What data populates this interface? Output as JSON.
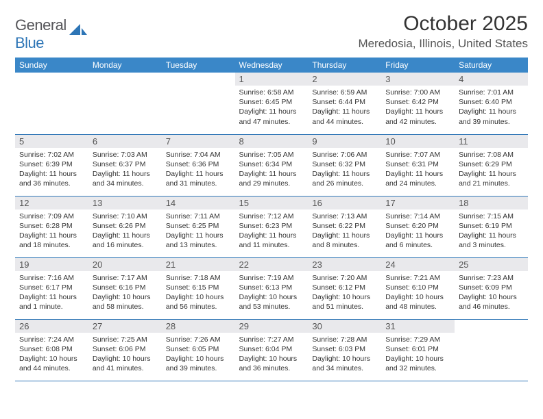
{
  "brand": {
    "part1": "General",
    "part2": "Blue"
  },
  "title": "October 2025",
  "location": "Meredosia, Illinois, United States",
  "colors": {
    "header_bg": "#3a87c8",
    "header_text": "#ffffff",
    "daynum_bg": "#e9e9ec",
    "rule": "#2d75b6",
    "brand_gray": "#555559",
    "brand_blue": "#2d75b6",
    "body_text": "#333333"
  },
  "weekdays": [
    "Sunday",
    "Monday",
    "Tuesday",
    "Wednesday",
    "Thursday",
    "Friday",
    "Saturday"
  ],
  "weeks": [
    [
      {
        "n": "",
        "sr": "",
        "ss": "",
        "dl": ""
      },
      {
        "n": "",
        "sr": "",
        "ss": "",
        "dl": ""
      },
      {
        "n": "",
        "sr": "",
        "ss": "",
        "dl": ""
      },
      {
        "n": "1",
        "sr": "Sunrise: 6:58 AM",
        "ss": "Sunset: 6:45 PM",
        "dl": "Daylight: 11 hours and 47 minutes."
      },
      {
        "n": "2",
        "sr": "Sunrise: 6:59 AM",
        "ss": "Sunset: 6:44 PM",
        "dl": "Daylight: 11 hours and 44 minutes."
      },
      {
        "n": "3",
        "sr": "Sunrise: 7:00 AM",
        "ss": "Sunset: 6:42 PM",
        "dl": "Daylight: 11 hours and 42 minutes."
      },
      {
        "n": "4",
        "sr": "Sunrise: 7:01 AM",
        "ss": "Sunset: 6:40 PM",
        "dl": "Daylight: 11 hours and 39 minutes."
      }
    ],
    [
      {
        "n": "5",
        "sr": "Sunrise: 7:02 AM",
        "ss": "Sunset: 6:39 PM",
        "dl": "Daylight: 11 hours and 36 minutes."
      },
      {
        "n": "6",
        "sr": "Sunrise: 7:03 AM",
        "ss": "Sunset: 6:37 PM",
        "dl": "Daylight: 11 hours and 34 minutes."
      },
      {
        "n": "7",
        "sr": "Sunrise: 7:04 AM",
        "ss": "Sunset: 6:36 PM",
        "dl": "Daylight: 11 hours and 31 minutes."
      },
      {
        "n": "8",
        "sr": "Sunrise: 7:05 AM",
        "ss": "Sunset: 6:34 PM",
        "dl": "Daylight: 11 hours and 29 minutes."
      },
      {
        "n": "9",
        "sr": "Sunrise: 7:06 AM",
        "ss": "Sunset: 6:32 PM",
        "dl": "Daylight: 11 hours and 26 minutes."
      },
      {
        "n": "10",
        "sr": "Sunrise: 7:07 AM",
        "ss": "Sunset: 6:31 PM",
        "dl": "Daylight: 11 hours and 24 minutes."
      },
      {
        "n": "11",
        "sr": "Sunrise: 7:08 AM",
        "ss": "Sunset: 6:29 PM",
        "dl": "Daylight: 11 hours and 21 minutes."
      }
    ],
    [
      {
        "n": "12",
        "sr": "Sunrise: 7:09 AM",
        "ss": "Sunset: 6:28 PM",
        "dl": "Daylight: 11 hours and 18 minutes."
      },
      {
        "n": "13",
        "sr": "Sunrise: 7:10 AM",
        "ss": "Sunset: 6:26 PM",
        "dl": "Daylight: 11 hours and 16 minutes."
      },
      {
        "n": "14",
        "sr": "Sunrise: 7:11 AM",
        "ss": "Sunset: 6:25 PM",
        "dl": "Daylight: 11 hours and 13 minutes."
      },
      {
        "n": "15",
        "sr": "Sunrise: 7:12 AM",
        "ss": "Sunset: 6:23 PM",
        "dl": "Daylight: 11 hours and 11 minutes."
      },
      {
        "n": "16",
        "sr": "Sunrise: 7:13 AM",
        "ss": "Sunset: 6:22 PM",
        "dl": "Daylight: 11 hours and 8 minutes."
      },
      {
        "n": "17",
        "sr": "Sunrise: 7:14 AM",
        "ss": "Sunset: 6:20 PM",
        "dl": "Daylight: 11 hours and 6 minutes."
      },
      {
        "n": "18",
        "sr": "Sunrise: 7:15 AM",
        "ss": "Sunset: 6:19 PM",
        "dl": "Daylight: 11 hours and 3 minutes."
      }
    ],
    [
      {
        "n": "19",
        "sr": "Sunrise: 7:16 AM",
        "ss": "Sunset: 6:17 PM",
        "dl": "Daylight: 11 hours and 1 minute."
      },
      {
        "n": "20",
        "sr": "Sunrise: 7:17 AM",
        "ss": "Sunset: 6:16 PM",
        "dl": "Daylight: 10 hours and 58 minutes."
      },
      {
        "n": "21",
        "sr": "Sunrise: 7:18 AM",
        "ss": "Sunset: 6:15 PM",
        "dl": "Daylight: 10 hours and 56 minutes."
      },
      {
        "n": "22",
        "sr": "Sunrise: 7:19 AM",
        "ss": "Sunset: 6:13 PM",
        "dl": "Daylight: 10 hours and 53 minutes."
      },
      {
        "n": "23",
        "sr": "Sunrise: 7:20 AM",
        "ss": "Sunset: 6:12 PM",
        "dl": "Daylight: 10 hours and 51 minutes."
      },
      {
        "n": "24",
        "sr": "Sunrise: 7:21 AM",
        "ss": "Sunset: 6:10 PM",
        "dl": "Daylight: 10 hours and 48 minutes."
      },
      {
        "n": "25",
        "sr": "Sunrise: 7:23 AM",
        "ss": "Sunset: 6:09 PM",
        "dl": "Daylight: 10 hours and 46 minutes."
      }
    ],
    [
      {
        "n": "26",
        "sr": "Sunrise: 7:24 AM",
        "ss": "Sunset: 6:08 PM",
        "dl": "Daylight: 10 hours and 44 minutes."
      },
      {
        "n": "27",
        "sr": "Sunrise: 7:25 AM",
        "ss": "Sunset: 6:06 PM",
        "dl": "Daylight: 10 hours and 41 minutes."
      },
      {
        "n": "28",
        "sr": "Sunrise: 7:26 AM",
        "ss": "Sunset: 6:05 PM",
        "dl": "Daylight: 10 hours and 39 minutes."
      },
      {
        "n": "29",
        "sr": "Sunrise: 7:27 AM",
        "ss": "Sunset: 6:04 PM",
        "dl": "Daylight: 10 hours and 36 minutes."
      },
      {
        "n": "30",
        "sr": "Sunrise: 7:28 AM",
        "ss": "Sunset: 6:03 PM",
        "dl": "Daylight: 10 hours and 34 minutes."
      },
      {
        "n": "31",
        "sr": "Sunrise: 7:29 AM",
        "ss": "Sunset: 6:01 PM",
        "dl": "Daylight: 10 hours and 32 minutes."
      },
      {
        "n": "",
        "sr": "",
        "ss": "",
        "dl": ""
      }
    ]
  ]
}
